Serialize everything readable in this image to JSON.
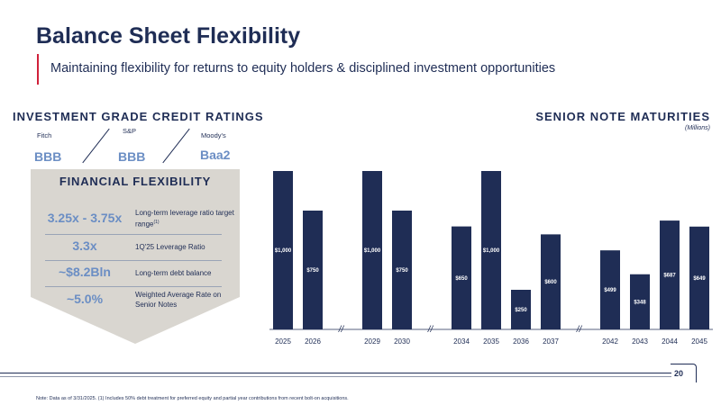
{
  "header": {
    "title": "Balance Sheet Flexibility",
    "subtitle": "Maintaining flexibility for returns to equity holders & disciplined investment opportunities"
  },
  "ratings": {
    "heading": "INVESTMENT GRADE CREDIT RATINGS",
    "agencies": [
      {
        "name": "Fitch",
        "rating": "BBB"
      },
      {
        "name": "S&P",
        "rating": "BBB"
      },
      {
        "name": "Moody's",
        "rating": "Baa2"
      }
    ]
  },
  "flexibility": {
    "heading": "FINANCIAL FLEXIBILITY",
    "rows": [
      {
        "value": "3.25x - 3.75x",
        "desc": "Long-term leverage ratio target range",
        "sup": "(1)"
      },
      {
        "value": "3.3x",
        "desc": "1Q'25 Leverage Ratio"
      },
      {
        "value": "~$8.2Bln",
        "desc": "Long-term debt balance"
      },
      {
        "value": "~5.0%",
        "desc": "Weighted Average Rate on Senior Notes"
      }
    ]
  },
  "maturities": {
    "heading": "SENIOR NOTE MATURITIES",
    "units": "(Millions)"
  },
  "colors": {
    "navy": "#1f2d55",
    "accent_red": "#d0213a",
    "rating_blue": "#6b8ec4",
    "panel_grey": "#d9d6d0"
  },
  "chart_data": {
    "type": "bar",
    "categories": [
      "2025",
      "2026",
      "2029",
      "2030",
      "2034",
      "2035",
      "2036",
      "2037",
      "2042",
      "2043",
      "2044",
      "2045"
    ],
    "values": [
      1000,
      750,
      1000,
      750,
      650,
      1000,
      250,
      600,
      499,
      348,
      687,
      649
    ],
    "value_labels": [
      "$1,000",
      "$750",
      "$1,000",
      "$750",
      "$650",
      "$1,000",
      "$250",
      "$600",
      "$499",
      "$348",
      "$687",
      "$649"
    ],
    "axis_breaks_after": [
      "2026",
      "2030",
      "2037"
    ],
    "axis_break_glyph": "//",
    "ylim": [
      0,
      1000
    ],
    "bar_color": "#1f2d55",
    "grid": false
  },
  "footer": {
    "page": "20",
    "note": "Note: Data as of 3/31/2025. (1) Includes 50% debt treatment for preferred equity and partial year contributions from recent bolt-on acquisitions."
  }
}
